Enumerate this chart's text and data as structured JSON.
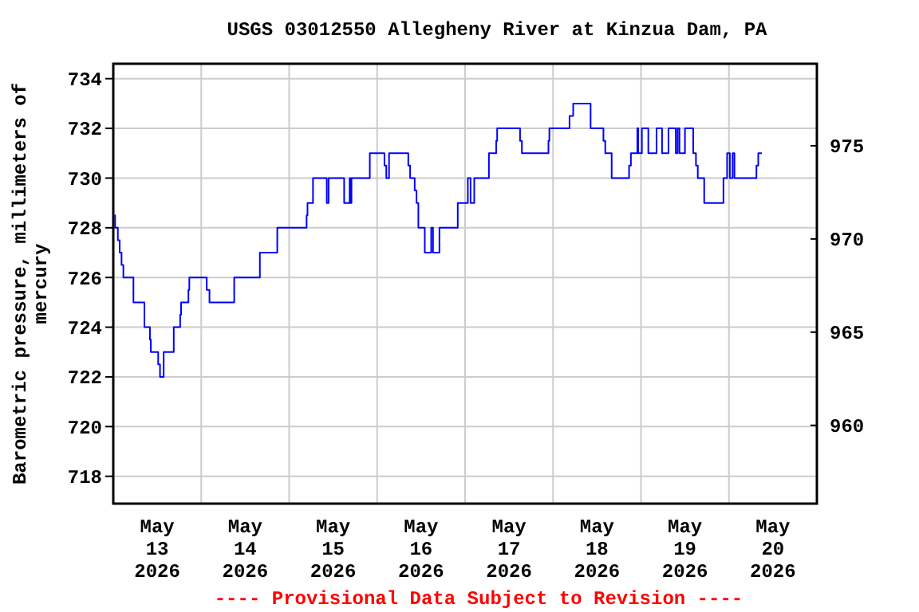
{
  "chart_data": {
    "type": "step",
    "title": "USGS 03012550 Allegheny River at Kinzua Dam, PA",
    "ylabel": "Barometric pressure, millimeters of\nmercury",
    "annotations": [
      "---- Provisional Data Subject to Revision ----"
    ],
    "xlim": [
      "2026-05-13T00:00",
      "2026-05-21T00:00"
    ],
    "xticks": [
      {
        "value": "2026-05-13T00:00",
        "label": null
      },
      {
        "value": "2026-05-13T12:00",
        "label": "May\n13\n2026"
      },
      {
        "value": "2026-05-14T00:00",
        "label": null
      },
      {
        "value": "2026-05-14T12:00",
        "label": "May\n14\n2026"
      },
      {
        "value": "2026-05-15T00:00",
        "label": null
      },
      {
        "value": "2026-05-15T12:00",
        "label": "May\n15\n2026"
      },
      {
        "value": "2026-05-16T00:00",
        "label": null
      },
      {
        "value": "2026-05-16T12:00",
        "label": "May\n16\n2026"
      },
      {
        "value": "2026-05-17T00:00",
        "label": null
      },
      {
        "value": "2026-05-17T12:00",
        "label": "May\n17\n2026"
      },
      {
        "value": "2026-05-18T00:00",
        "label": null
      },
      {
        "value": "2026-05-18T12:00",
        "label": "May\n18\n2026"
      },
      {
        "value": "2026-05-19T00:00",
        "label": null
      },
      {
        "value": "2026-05-19T12:00",
        "label": "May\n19\n2026"
      },
      {
        "value": "2026-05-20T00:00",
        "label": null
      },
      {
        "value": "2026-05-20T12:00",
        "label": "May\n20\n2026"
      },
      {
        "value": "2026-05-21T00:00",
        "label": null
      }
    ],
    "ylim": [
      716.9,
      734.6
    ],
    "yticks": [
      718,
      720,
      722,
      724,
      726,
      728,
      730,
      732,
      734
    ],
    "y2lim": [
      955.8,
      979.4
    ],
    "y2ticks": [
      960,
      965,
      970,
      975
    ],
    "grid": true,
    "series": [
      {
        "color": "#0000ff",
        "x": [
          "2026-05-13T00:15",
          "2026-05-13T00:30",
          "2026-05-13T01:15",
          "2026-05-13T01:45",
          "2026-05-13T02:15",
          "2026-05-13T02:45",
          "2026-05-13T05:30",
          "2026-05-13T08:30",
          "2026-05-13T10:00",
          "2026-05-13T10:15",
          "2026-05-13T12:15",
          "2026-05-13T12:45",
          "2026-05-13T13:45",
          "2026-05-13T16:30",
          "2026-05-13T18:15",
          "2026-05-13T18:30",
          "2026-05-13T20:30",
          "2026-05-13T20:45",
          "2026-05-14T01:30",
          "2026-05-14T02:15",
          "2026-05-14T09:00",
          "2026-05-14T16:00",
          "2026-05-14T20:45",
          "2026-05-15T04:45",
          "2026-05-15T05:00",
          "2026-05-15T06:30",
          "2026-05-15T10:15",
          "2026-05-15T10:45",
          "2026-05-15T15:00",
          "2026-05-15T16:30",
          "2026-05-15T16:45",
          "2026-05-15T17:00",
          "2026-05-15T22:00",
          "2026-05-16T02:00",
          "2026-05-16T02:30",
          "2026-05-16T03:15",
          "2026-05-16T08:30",
          "2026-05-16T09:00",
          "2026-05-16T10:15",
          "2026-05-16T10:45",
          "2026-05-16T11:15",
          "2026-05-16T13:00",
          "2026-05-16T14:45",
          "2026-05-16T15:15",
          "2026-05-16T17:00",
          "2026-05-16T22:00",
          "2026-05-17T00:45",
          "2026-05-17T01:30",
          "2026-05-17T02:30",
          "2026-05-17T06:30",
          "2026-05-17T08:30",
          "2026-05-17T08:45",
          "2026-05-17T15:00",
          "2026-05-17T15:30",
          "2026-05-17T22:45",
          "2026-05-17T23:00",
          "2026-05-18T04:30",
          "2026-05-18T05:30",
          "2026-05-18T10:15",
          "2026-05-18T13:45",
          "2026-05-18T14:15",
          "2026-05-18T16:00",
          "2026-05-18T20:45",
          "2026-05-18T21:15",
          "2026-05-18T23:00",
          "2026-05-18T23:15",
          "2026-05-19T00:15",
          "2026-05-19T02:00",
          "2026-05-19T04:15",
          "2026-05-19T05:45",
          "2026-05-19T07:30",
          "2026-05-19T09:30",
          "2026-05-19T10:00",
          "2026-05-19T10:30",
          "2026-05-19T12:00",
          "2026-05-19T14:15",
          "2026-05-19T15:00",
          "2026-05-19T15:30",
          "2026-05-19T17:15",
          "2026-05-19T22:30",
          "2026-05-19T23:30",
          "2026-05-20T00:15",
          "2026-05-20T01:00",
          "2026-05-20T01:30",
          "2026-05-20T07:30",
          "2026-05-20T08:00",
          "2026-05-20T09:00"
        ],
        "values": [
          728.5,
          728,
          727.5,
          727,
          726.5,
          726,
          725,
          724,
          723.5,
          723,
          722.5,
          722,
          723,
          724,
          724.5,
          725,
          725.5,
          726,
          725.5,
          725,
          726,
          727,
          728,
          728.5,
          729,
          730,
          729,
          730,
          729,
          730,
          729,
          730,
          731,
          730.5,
          730,
          731,
          730.5,
          730,
          729.5,
          729,
          728,
          727,
          728,
          727,
          728,
          729,
          730,
          729,
          730,
          731,
          731.5,
          732,
          731.5,
          731,
          731.5,
          732,
          732.5,
          733,
          732,
          731.5,
          731,
          730,
          730.5,
          731,
          732,
          731,
          732,
          731,
          732,
          731,
          732,
          731,
          732,
          731,
          732,
          731,
          730.5,
          730,
          729,
          730,
          731,
          730,
          731,
          730,
          730.5,
          731,
          731
        ]
      }
    ]
  }
}
